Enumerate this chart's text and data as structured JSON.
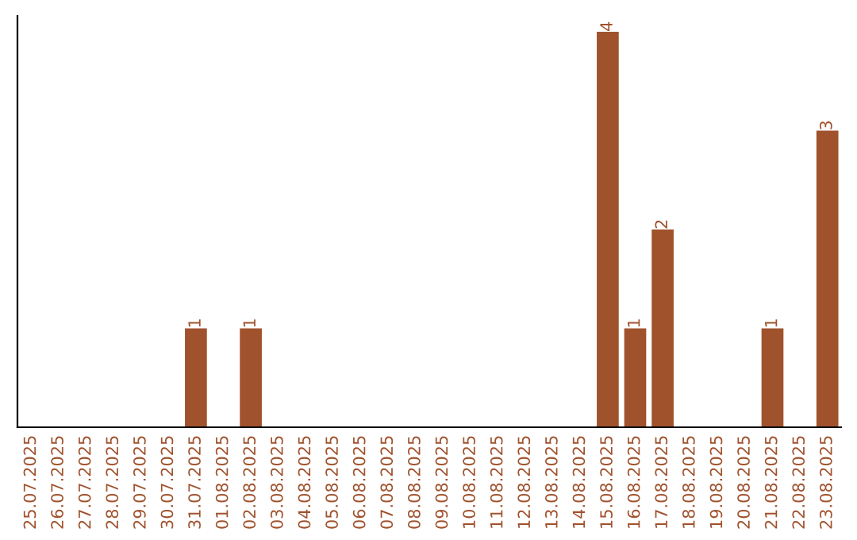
{
  "chart_data": {
    "type": "bar",
    "categories": [
      "25.07.2025",
      "26.07.2025",
      "27.07.2025",
      "28.07.2025",
      "29.07.2025",
      "30.07.2025",
      "31.07.2025",
      "01.08.2025",
      "02.08.2025",
      "03.08.2025",
      "04.08.2025",
      "05.08.2025",
      "06.08.2025",
      "07.08.2025",
      "08.08.2025",
      "09.08.2025",
      "10.08.2025",
      "11.08.2025",
      "12.08.2025",
      "13.08.2025",
      "14.08.2025",
      "15.08.2025",
      "16.08.2025",
      "17.08.2025",
      "18.08.2025",
      "19.08.2025",
      "20.08.2025",
      "21.08.2025",
      "22.08.2025",
      "23.08.2025"
    ],
    "values": [
      0,
      0,
      0,
      0,
      0,
      0,
      1,
      0,
      1,
      0,
      0,
      0,
      0,
      0,
      0,
      0,
      0,
      0,
      0,
      0,
      0,
      4,
      1,
      2,
      0,
      0,
      0,
      1,
      0,
      3
    ],
    "value_labels": [
      null,
      null,
      null,
      null,
      null,
      null,
      "1",
      null,
      "1",
      null,
      null,
      null,
      null,
      null,
      null,
      null,
      null,
      null,
      null,
      null,
      null,
      "4",
      "1",
      "2",
      null,
      null,
      null,
      "1",
      null,
      "3"
    ],
    "color": "#a0522d",
    "tick_labels": "x",
    "grid": false,
    "legend": false
  }
}
